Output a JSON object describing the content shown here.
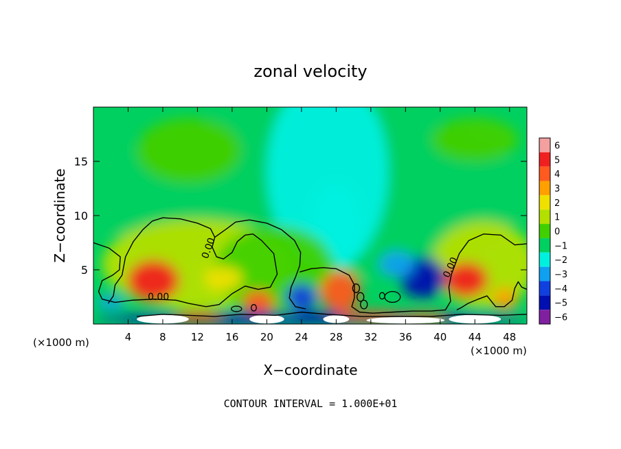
{
  "chart_data": {
    "type": "heatmap",
    "title": "zonal velocity",
    "xlabel": "X−coordinate",
    "ylabel": "Z−coordinate",
    "x_unit_left": "(×1000 m)",
    "x_unit_right": "(×1000 m)",
    "footer": "CONTOUR INTERVAL = 1.000E+01",
    "xlim": [
      0,
      50
    ],
    "ylim": [
      0,
      20
    ],
    "x_ticks": [
      4,
      8,
      12,
      16,
      20,
      24,
      28,
      32,
      36,
      40,
      44,
      48
    ],
    "y_ticks": [
      5,
      10,
      15
    ],
    "colorbar": {
      "levels": [
        6,
        5,
        4,
        3,
        2,
        1,
        0,
        -1,
        -2,
        -3,
        -4,
        -5,
        -6
      ],
      "colors": [
        "#f4a0a0",
        "#f02020",
        "#ff5a20",
        "#ffa000",
        "#f0e000",
        "#b4e000",
        "#40d000",
        "#00d060",
        "#00f0e0",
        "#10a0f0",
        "#1040e0",
        "#0010b0",
        "#8020a0"
      ]
    },
    "contour_labels": [
      {
        "text": "0.00",
        "x": 7.5,
        "z": 2.2
      },
      {
        "text": "0.00",
        "x": 13.6,
        "z": 6.9,
        "angle": -70
      },
      {
        "text": "0.00",
        "x": 41.5,
        "z": 5.1,
        "angle": -65
      }
    ],
    "blobs": [
      {
        "x": 25,
        "z": 12,
        "rx": 25,
        "rz": 8,
        "value": -1
      },
      {
        "x": 27,
        "z": 14,
        "rx": 7,
        "rz": 9,
        "value": -2
      },
      {
        "x": 28,
        "z": 9,
        "rx": 3,
        "rz": 4,
        "value": -2
      },
      {
        "x": 11,
        "z": 16,
        "rx": 6,
        "rz": 3,
        "value": 0
      },
      {
        "x": 44,
        "z": 17,
        "rx": 5,
        "rz": 2,
        "value": 0
      },
      {
        "x": 12,
        "z": 5.5,
        "rx": 11,
        "rz": 4.2,
        "value": 0.6
      },
      {
        "x": 21,
        "z": 5,
        "rx": 7,
        "rz": 4,
        "value": 0.4
      },
      {
        "x": 45,
        "z": 5.5,
        "rx": 6,
        "rz": 4,
        "value": 0.6
      },
      {
        "x": 6.9,
        "z": 4,
        "rx": 3,
        "rz": 1.9,
        "value": 4.7
      },
      {
        "x": 15,
        "z": 4.2,
        "rx": 2.2,
        "rz": 1.1,
        "value": 2.2
      },
      {
        "x": 19,
        "z": 2,
        "rx": 1.8,
        "rz": 1.1,
        "value": 3.6
      },
      {
        "x": 28.5,
        "z": 3,
        "rx": 2.3,
        "rz": 1.9,
        "value": 4.3
      },
      {
        "x": 43,
        "z": 4.1,
        "rx": 2.5,
        "rz": 1.6,
        "value": 5.0
      },
      {
        "x": 47.5,
        "z": 2.3,
        "rx": 1.5,
        "rz": 1,
        "value": 2.5
      },
      {
        "x": 38,
        "z": 4.3,
        "rx": 2.6,
        "rz": 1.9,
        "value": -4.8
      },
      {
        "x": 35,
        "z": 5.5,
        "rx": 2,
        "rz": 1.2,
        "value": -2.8
      },
      {
        "x": 29,
        "z": 7,
        "rx": 2,
        "rz": 1.2,
        "value": -2.4
      },
      {
        "x": 24,
        "z": 2.5,
        "rx": 1.8,
        "rz": 1.2,
        "value": -3.6
      },
      {
        "x": 2,
        "z": 2,
        "rx": 1.6,
        "rz": 0.6,
        "value": -3.4
      },
      {
        "x": 25,
        "z": 0.55,
        "rx": 25,
        "rz": 0.55,
        "value": -5.0
      },
      {
        "x": 32,
        "z": 0.7,
        "rx": 4,
        "rz": 0.5,
        "value": 3.5
      },
      {
        "x": 12,
        "z": 0.6,
        "rx": 3,
        "rz": 0.5,
        "value": 4.5
      },
      {
        "x": 38,
        "z": 0.6,
        "rx": 3,
        "rz": 0.45,
        "value": 3.5
      }
    ],
    "white_patches": [
      {
        "x": 8,
        "z": 0.45,
        "rx": 3,
        "rz": 0.4
      },
      {
        "x": 20,
        "z": 0.45,
        "rx": 2,
        "rz": 0.4
      },
      {
        "x": 28,
        "z": 0.45,
        "rx": 1.5,
        "rz": 0.35
      },
      {
        "x": 36,
        "z": 0.35,
        "rx": 4.5,
        "rz": 0.3
      },
      {
        "x": 44,
        "z": 0.45,
        "rx": 3,
        "rz": 0.4
      }
    ],
    "zero_contours": [
      [
        [
          0,
          7.5
        ],
        [
          1.8,
          7
        ],
        [
          3.1,
          6.2
        ],
        [
          3,
          5
        ],
        [
          2.2,
          4.5
        ],
        [
          1,
          4
        ],
        [
          0.6,
          3
        ],
        [
          1,
          2.3
        ],
        [
          2.5,
          2
        ],
        [
          4.5,
          2.2
        ],
        [
          7,
          2.3
        ],
        [
          9.5,
          2.2
        ],
        [
          11,
          1.9
        ],
        [
          13,
          1.6
        ],
        [
          14.5,
          1.8
        ],
        [
          16,
          2.8
        ],
        [
          17.5,
          3.5
        ],
        [
          19,
          3.2
        ],
        [
          20.4,
          3.4
        ],
        [
          21.2,
          4.6
        ],
        [
          20.8,
          6.5
        ],
        [
          19.4,
          7.7
        ],
        [
          18.4,
          8.3
        ],
        [
          17.5,
          8.2
        ],
        [
          16.6,
          7.6
        ],
        [
          16,
          6.6
        ],
        [
          15,
          6
        ],
        [
          14.2,
          6.2
        ],
        [
          13.7,
          7.1
        ],
        [
          14,
          8
        ],
        [
          15.4,
          8.8
        ],
        [
          16.4,
          9.4
        ],
        [
          18,
          9.6
        ],
        [
          20,
          9.3
        ],
        [
          21.7,
          8.7
        ],
        [
          23.2,
          7.7
        ],
        [
          23.9,
          6.6
        ],
        [
          23.8,
          5.4
        ],
        [
          23.3,
          4.3
        ],
        [
          22.8,
          3.4
        ],
        [
          22.6,
          2.4
        ],
        [
          23.3,
          1.6
        ],
        [
          24.5,
          1.4
        ]
      ],
      [
        [
          1.7,
          1.9
        ],
        [
          2.3,
          2.6
        ],
        [
          2.5,
          3.6
        ],
        [
          3.3,
          4.5
        ],
        [
          3.7,
          6.2
        ],
        [
          4.6,
          7.6
        ],
        [
          5.7,
          8.7
        ],
        [
          6.8,
          9.5
        ],
        [
          8,
          9.8
        ],
        [
          10,
          9.7
        ],
        [
          12,
          9.3
        ],
        [
          13.5,
          8.8
        ],
        [
          14,
          8
        ]
      ],
      [
        [
          23.8,
          4.8
        ],
        [
          25.1,
          5.1
        ],
        [
          26.5,
          5.2
        ],
        [
          28,
          5.1
        ],
        [
          29.5,
          4.5
        ],
        [
          30.1,
          3.6
        ],
        [
          30.1,
          2.4
        ],
        [
          29.8,
          1.6
        ],
        [
          30.7,
          1.1
        ],
        [
          32.2,
          1
        ],
        [
          34.5,
          1.1
        ],
        [
          36.8,
          1.2
        ],
        [
          38.9,
          1.2
        ],
        [
          40.6,
          1.3
        ],
        [
          41.2,
          2.1
        ],
        [
          41,
          3.4
        ],
        [
          41.3,
          4.6
        ],
        [
          42.2,
          6.5
        ],
        [
          43.3,
          7.7
        ],
        [
          45,
          8.3
        ],
        [
          47,
          8.2
        ],
        [
          48.6,
          7.3
        ],
        [
          50,
          7.4
        ]
      ],
      [
        [
          50,
          3.2
        ],
        [
          49.4,
          3.4
        ],
        [
          49,
          3.9
        ],
        [
          48.6,
          3.3
        ],
        [
          48.3,
          2.2
        ],
        [
          47.4,
          1.6
        ],
        [
          46.4,
          1.6
        ],
        [
          45.4,
          2.6
        ],
        [
          44.4,
          2.3
        ],
        [
          43.2,
          1.9
        ],
        [
          42.4,
          1.5
        ],
        [
          41.9,
          1.3
        ]
      ],
      [
        [
          5,
          0.7
        ],
        [
          8,
          0.9
        ],
        [
          11,
          0.8
        ],
        [
          14,
          0.7
        ],
        [
          17,
          0.9
        ],
        [
          21,
          0.8
        ],
        [
          24,
          1.1
        ],
        [
          27,
          0.9
        ],
        [
          31,
          0.7
        ],
        [
          35,
          0.7
        ],
        [
          39,
          0.7
        ],
        [
          42.5,
          0.9
        ],
        [
          47,
          0.8
        ],
        [
          50,
          0.9
        ]
      ]
    ],
    "small_loops": [
      {
        "x": 30.3,
        "z": 3.3,
        "rx": 0.4,
        "rz": 0.4
      },
      {
        "x": 30.8,
        "z": 2.5,
        "rx": 0.4,
        "rz": 0.4
      },
      {
        "x": 31.2,
        "z": 1.8,
        "rx": 0.4,
        "rz": 0.4
      },
      {
        "x": 34.5,
        "z": 2.5,
        "rx": 0.9,
        "rz": 0.5
      },
      {
        "x": 33.3,
        "z": 2.6,
        "rx": 0.3,
        "rz": 0.3
      },
      {
        "x": 16.5,
        "z": 1.4,
        "rx": 0.6,
        "rz": 0.25
      },
      {
        "x": 18.5,
        "z": 1.5,
        "rx": 0.3,
        "rz": 0.3
      }
    ]
  }
}
